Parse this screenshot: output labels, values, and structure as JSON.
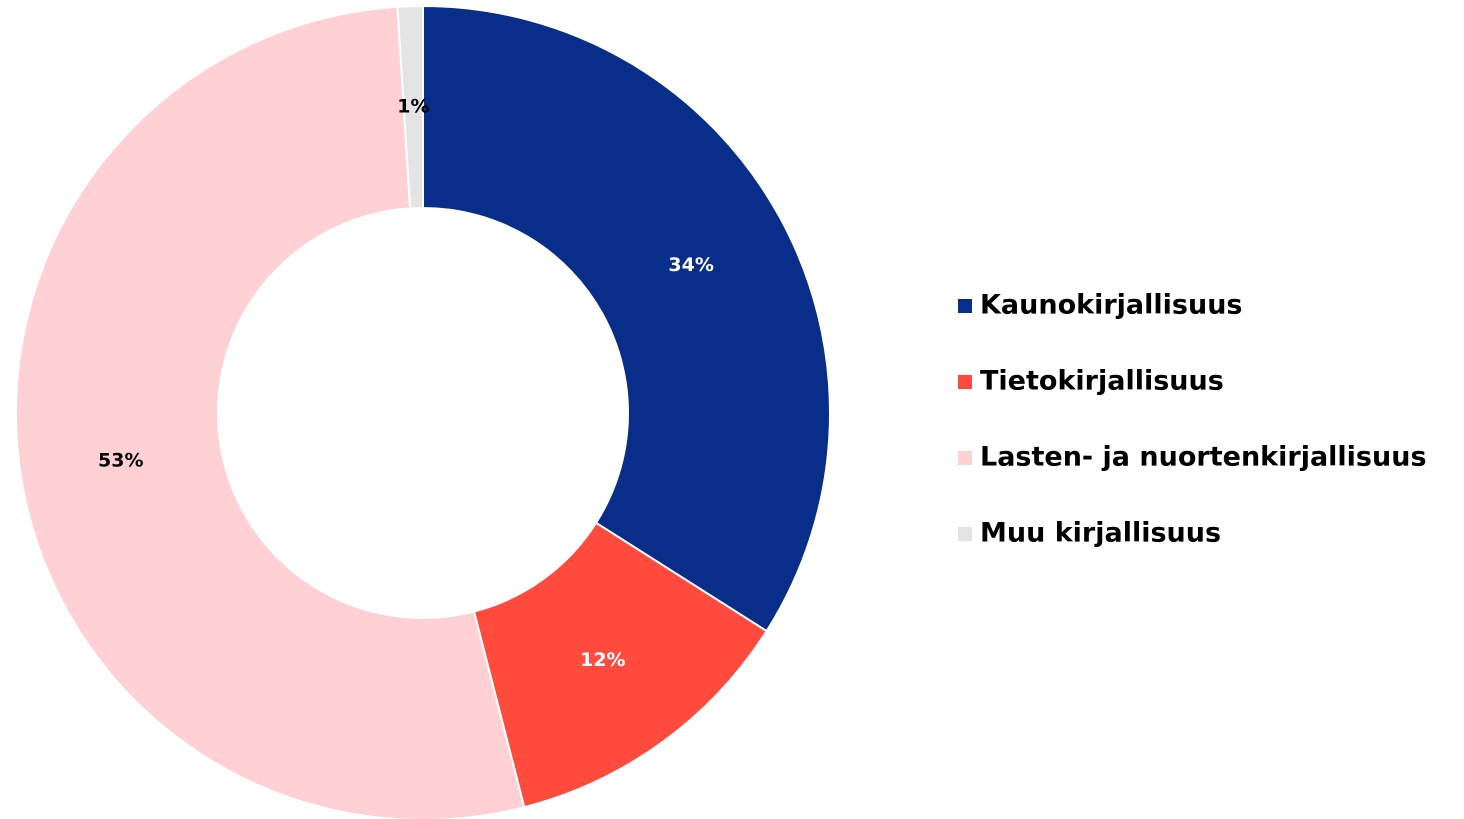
{
  "chart_data": {
    "type": "donut",
    "categories": [
      "Kaunokirjallisuus",
      "Tietokirjallisuus",
      "Lasten- ja nuortenkirjallisuus",
      "Muu kirjallisuus"
    ],
    "values": [
      34,
      12,
      53,
      1
    ],
    "value_labels": [
      "34%",
      "12%",
      "53%",
      "1%"
    ],
    "colors": [
      "#082e8a",
      "#ff4b3e",
      "#ffd1d5",
      "#e4e4e4"
    ],
    "legend": "right"
  }
}
